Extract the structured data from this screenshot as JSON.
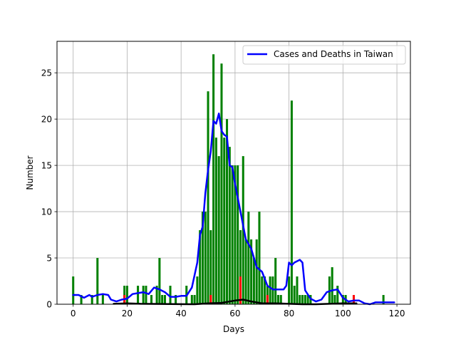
{
  "chart_data": {
    "type": "bar",
    "title": "",
    "xlabel": "Days",
    "ylabel": "Number",
    "xlim": [
      -6,
      125
    ],
    "ylim": [
      0,
      28.4
    ],
    "xticks": [
      0,
      20,
      40,
      60,
      80,
      100,
      120
    ],
    "yticks": [
      0,
      5,
      10,
      15,
      20,
      25
    ],
    "grid": true,
    "legend_position": "top-right",
    "colors": {
      "cases": "#008000",
      "deaths": "#ff0000",
      "moving_average": "#0000ff",
      "deaths_moving_average": "#000000"
    },
    "cases": {
      "days": [
        0,
        3,
        7,
        9,
        11,
        19,
        20,
        24,
        26,
        27,
        29,
        31,
        32,
        33,
        34,
        36,
        38,
        42,
        44,
        45,
        46,
        47,
        48,
        49,
        50,
        51,
        52,
        53,
        54,
        55,
        56,
        57,
        58,
        59,
        60,
        61,
        62,
        63,
        64,
        65,
        66,
        67,
        68,
        69,
        70,
        71,
        72,
        73,
        74,
        75,
        76,
        77,
        80,
        81,
        82,
        83,
        84,
        85,
        86,
        87,
        88,
        95,
        96,
        97,
        98,
        100,
        101,
        115
      ],
      "values": [
        3,
        1,
        1,
        5,
        1,
        2,
        2,
        2,
        2,
        2,
        1,
        2,
        5,
        1,
        1,
        2,
        1,
        2,
        1,
        1,
        3,
        8,
        10,
        10,
        23,
        8,
        27,
        18,
        16,
        26,
        18,
        20,
        17,
        15,
        15,
        15,
        8,
        16,
        7,
        10,
        7,
        5,
        7,
        10,
        3,
        3,
        2,
        3,
        3,
        5,
        1,
        1,
        3,
        22,
        2,
        3,
        1,
        1,
        1,
        1,
        1,
        3,
        4,
        1,
        2,
        1,
        1,
        1
      ]
    },
    "deaths": {
      "days": [
        19,
        51,
        62,
        72,
        104
      ],
      "values": [
        1,
        1,
        3,
        1,
        1
      ]
    },
    "series": [
      {
        "name": "Cases and Deaths in Taiwan",
        "x": [
          0,
          2,
          4,
          6,
          7,
          9,
          11,
          13,
          14,
          16,
          18,
          20,
          22,
          24,
          26,
          28,
          30,
          32,
          34,
          36,
          38,
          40,
          42,
          44,
          46,
          47,
          48,
          49,
          50,
          51,
          52,
          53,
          54,
          55,
          56,
          57,
          58,
          59,
          60,
          62,
          64,
          66,
          68,
          70,
          72,
          74,
          76,
          78,
          79,
          80,
          81,
          82,
          84,
          85,
          86,
          88,
          90,
          92,
          94,
          96,
          98,
          100,
          102,
          104,
          106,
          108,
          110,
          112,
          114,
          116,
          118,
          119
        ],
        "values": [
          1,
          1,
          0.7,
          1,
          0.8,
          1,
          1.1,
          1,
          0.5,
          0.3,
          0.5,
          0.6,
          1.1,
          1.2,
          1.3,
          1.1,
          1.8,
          1.6,
          1.3,
          0.8,
          0.8,
          0.9,
          0.9,
          1.8,
          4.5,
          7.5,
          8.4,
          12,
          14.5,
          16.5,
          19.8,
          19.5,
          20.6,
          18.7,
          18.3,
          18.1,
          15,
          14.8,
          13,
          10,
          7,
          6,
          4,
          3.5,
          2,
          1.6,
          1.6,
          1.6,
          2,
          4.5,
          4.2,
          4.5,
          4.8,
          4.5,
          1.5,
          0.6,
          0.3,
          0.5,
          1.3,
          1.5,
          1.6,
          0.7,
          0.3,
          0.4,
          0.4,
          0.1,
          0,
          0.2,
          0.2,
          0.2,
          0.2,
          0.2
        ]
      },
      {
        "name": "",
        "x": [
          15,
          20,
          25,
          45,
          50,
          55,
          60,
          63,
          66,
          70,
          75,
          80,
          85,
          90,
          100,
          105
        ],
        "values": [
          0.05,
          0.1,
          0.05,
          0,
          0.1,
          0.15,
          0.4,
          0.5,
          0.3,
          0.1,
          0.1,
          0.05,
          0,
          0,
          0.1,
          0.1
        ]
      }
    ]
  }
}
